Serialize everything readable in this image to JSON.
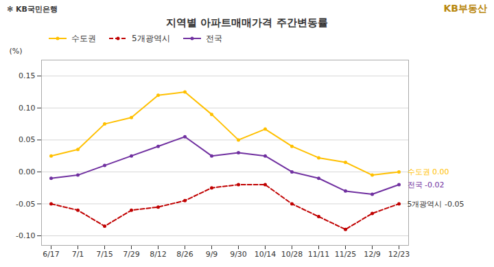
{
  "chart_data": {
    "type": "line",
    "title": "지역별 아파트매매가격 주간변동률",
    "ylabel": "(%)",
    "categories": [
      "6/17",
      "7/1",
      "7/15",
      "7/29",
      "8/12",
      "8/26",
      "9/9",
      "9/30",
      "10/14",
      "10/28",
      "11/11",
      "11/25",
      "12/9",
      "12/23"
    ],
    "series": [
      {
        "name": "수도권",
        "color": "#FFC000",
        "marker": "circle",
        "line_style": "solid",
        "values": [
          0.025,
          0.035,
          0.075,
          0.085,
          0.12,
          0.125,
          0.09,
          0.05,
          0.067,
          0.04,
          0.022,
          0.015,
          -0.005,
          0.0
        ]
      },
      {
        "name": "5개광역시",
        "color": "#C00000",
        "marker": "circle",
        "line_style": "dashed",
        "values": [
          -0.05,
          -0.06,
          -0.085,
          -0.06,
          -0.055,
          -0.045,
          -0.025,
          -0.02,
          -0.02,
          -0.05,
          -0.07,
          -0.09,
          -0.065,
          -0.05
        ]
      },
      {
        "name": "전국",
        "color": "#7030A0",
        "marker": "circle",
        "line_style": "solid",
        "values": [
          -0.01,
          -0.005,
          0.01,
          0.025,
          0.04,
          0.055,
          0.025,
          0.03,
          0.025,
          0.0,
          -0.01,
          -0.03,
          -0.035,
          -0.02
        ]
      }
    ],
    "ylim": [
      -0.115,
      0.175
    ],
    "yticks": [
      {
        "value": -0.1,
        "label": "-0.10"
      },
      -0.05,
      {
        "value": 0,
        "label": "0.00"
      },
      0.05,
      {
        "value": 0.1,
        "label": "0.10"
      },
      0.15
    ],
    "grid": true,
    "legend": "upper left",
    "annotations": [
      {
        "text": "수도권 0.00",
        "color": "#FFC000",
        "series": "수도권"
      },
      {
        "text": "전국 -0.02",
        "color": "#7030A0",
        "series": "전국"
      },
      {
        "text": "5개광역시 -0.05",
        "color": "#333333",
        "series": "5개광역시"
      },
      {
        "text": "✻ KB국민은행",
        "color": "#333333"
      },
      {
        "text": "KB부동산",
        "color": "#B8860B"
      }
    ]
  }
}
